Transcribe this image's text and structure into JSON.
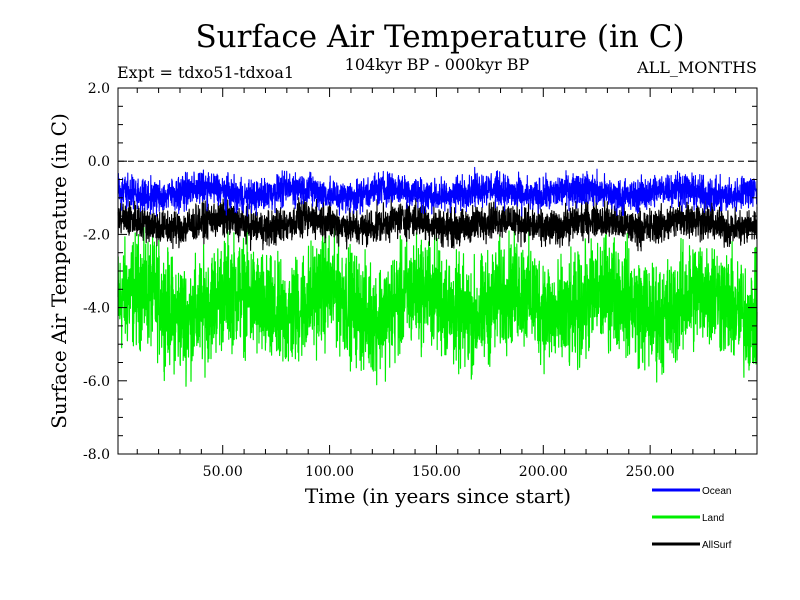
{
  "chart_data": {
    "type": "line",
    "title": "Surface Air Temperature (in C)",
    "subtitle": "104kyr BP - 000kyr BP",
    "experiment_label": "Expt = tdxo51-tdxoa1",
    "months_label": "ALL_MONTHS",
    "xlabel": "Time (in years since start)",
    "ylabel": "Surface Air Temperature (in C)",
    "xlim": [
      1,
      300
    ],
    "ylim": [
      -8.0,
      2.0
    ],
    "xticks": [
      50,
      100,
      150,
      200,
      250
    ],
    "xtick_labels": [
      "50.00",
      "100.00",
      "150.00",
      "200.00",
      "250.00"
    ],
    "yticks": [
      -8.0,
      -6.0,
      -4.0,
      -2.0,
      0.0,
      2.0
    ],
    "ytick_labels": [
      "-8.0",
      "-6.0",
      "-4.0",
      "-2.0",
      "0.0",
      "2.0"
    ],
    "reference_line": {
      "y": 0.0,
      "style": "dashed"
    },
    "legend_position": "bottom-right",
    "series": [
      {
        "name": "Land",
        "color": "#00ee00",
        "mean": -3.9,
        "min": -6.4,
        "max": -1.3
      },
      {
        "name": "AllSurf",
        "color": "#000000",
        "mean": -1.7,
        "min": -2.6,
        "max": -0.9
      },
      {
        "name": "Ocean",
        "color": "#0000ff",
        "mean": -0.85,
        "min": -1.5,
        "max": 0.05
      }
    ],
    "legend": [
      {
        "name": "Ocean",
        "color": "#0000ff"
      },
      {
        "name": "Land",
        "color": "#00ee00"
      },
      {
        "name": "AllSurf",
        "color": "#000000"
      }
    ]
  }
}
